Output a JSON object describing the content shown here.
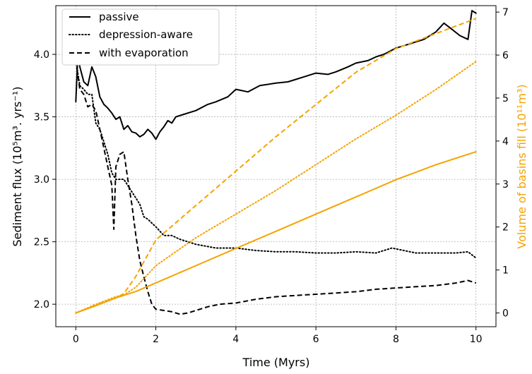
{
  "chart_data": {
    "type": "line",
    "title": "",
    "xlabel": "Time (Myrs)",
    "ylabel_left": "Sediment flux (10⁵m³. yrs⁻¹)",
    "ylabel_right": "Volume of basins fill (10¹¹m³)",
    "xlim": [
      -0.5,
      10.5
    ],
    "ylim_left": [
      1.82,
      4.39
    ],
    "ylim_right": [
      -0.32,
      7.15
    ],
    "xticks": [
      "0",
      "2",
      "4",
      "6",
      "8",
      "10"
    ],
    "yticks_left": [
      "2.0",
      "2.5",
      "3.0",
      "3.5",
      "4.0"
    ],
    "yticks_right": [
      "0",
      "1",
      "2",
      "3",
      "4",
      "5",
      "6",
      "7"
    ],
    "grid": true,
    "legend_position": "top-left",
    "colors": {
      "flux": "#000000",
      "volume": "#f5a300"
    },
    "series": [
      {
        "name": "passive",
        "axis": "left",
        "style": "solid",
        "x": [
          0.0,
          0.05,
          0.1,
          0.2,
          0.3,
          0.4,
          0.5,
          0.6,
          0.7,
          0.8,
          0.9,
          1.0,
          1.1,
          1.2,
          1.3,
          1.4,
          1.5,
          1.6,
          1.7,
          1.8,
          1.9,
          2.0,
          2.1,
          2.2,
          2.3,
          2.4,
          2.5,
          2.7,
          3.0,
          3.3,
          3.5,
          3.8,
          4.0,
          4.3,
          4.6,
          5.0,
          5.3,
          5.5,
          5.7,
          6.0,
          6.3,
          6.5,
          6.8,
          7.0,
          7.3,
          7.5,
          7.7,
          8.0,
          8.3,
          8.5,
          8.7,
          9.0,
          9.2,
          9.4,
          9.6,
          9.8,
          9.9,
          10.0
        ],
        "y": [
          3.62,
          4.0,
          3.9,
          3.78,
          3.75,
          3.9,
          3.82,
          3.66,
          3.6,
          3.57,
          3.53,
          3.48,
          3.5,
          3.4,
          3.43,
          3.38,
          3.37,
          3.34,
          3.36,
          3.4,
          3.37,
          3.32,
          3.38,
          3.42,
          3.47,
          3.45,
          3.5,
          3.52,
          3.55,
          3.6,
          3.62,
          3.66,
          3.72,
          3.7,
          3.75,
          3.77,
          3.78,
          3.8,
          3.82,
          3.85,
          3.84,
          3.86,
          3.9,
          3.93,
          3.95,
          3.98,
          4.0,
          4.05,
          4.08,
          4.1,
          4.12,
          4.18,
          4.25,
          4.2,
          4.15,
          4.12,
          4.35,
          4.33
        ]
      },
      {
        "name": "depression-aware",
        "axis": "left",
        "style": "dotted",
        "x": [
          0.0,
          0.1,
          0.2,
          0.3,
          0.4,
          0.5,
          0.6,
          0.7,
          0.8,
          0.9,
          1.0,
          1.1,
          1.2,
          1.3,
          1.4,
          1.5,
          1.6,
          1.7,
          1.8,
          1.9,
          2.0,
          2.2,
          2.4,
          2.6,
          2.8,
          3.0,
          3.5,
          4.0,
          4.5,
          5.0,
          5.5,
          6.0,
          6.5,
          7.0,
          7.5,
          7.9,
          8.5,
          9.0,
          9.5,
          9.8,
          10.0
        ],
        "y": [
          3.95,
          3.75,
          3.72,
          3.68,
          3.68,
          3.45,
          3.4,
          3.3,
          3.2,
          3.05,
          3.0,
          3.0,
          3.0,
          2.95,
          2.9,
          2.85,
          2.8,
          2.7,
          2.68,
          2.65,
          2.62,
          2.55,
          2.55,
          2.52,
          2.5,
          2.48,
          2.45,
          2.45,
          2.43,
          2.42,
          2.42,
          2.41,
          2.41,
          2.42,
          2.41,
          2.45,
          2.41,
          2.41,
          2.41,
          2.42,
          2.37
        ]
      },
      {
        "name": "with evaporation",
        "axis": "left",
        "style": "dashed",
        "x": [
          0.0,
          0.1,
          0.2,
          0.3,
          0.4,
          0.5,
          0.6,
          0.7,
          0.8,
          0.9,
          0.95,
          1.0,
          1.1,
          1.2,
          1.3,
          1.4,
          1.5,
          1.6,
          1.7,
          1.8,
          1.9,
          2.0,
          2.2,
          2.4,
          2.6,
          2.8,
          3.0,
          3.3,
          3.6,
          4.0,
          4.5,
          5.0,
          5.5,
          6.0,
          6.5,
          7.0,
          7.5,
          8.0,
          8.5,
          9.0,
          9.5,
          9.8,
          10.0
        ],
        "y": [
          3.95,
          3.72,
          3.68,
          3.58,
          3.6,
          3.55,
          3.4,
          3.25,
          3.1,
          2.95,
          2.6,
          3.1,
          3.2,
          3.22,
          3.0,
          2.8,
          2.55,
          2.35,
          2.22,
          2.1,
          2.0,
          1.96,
          1.95,
          1.94,
          1.92,
          1.93,
          1.95,
          1.98,
          2.0,
          2.01,
          2.04,
          2.06,
          2.07,
          2.08,
          2.09,
          2.1,
          2.12,
          2.13,
          2.14,
          2.15,
          2.17,
          2.19,
          2.17
        ]
      },
      {
        "name": "",
        "axis": "right",
        "style": "solid",
        "x": [
          0.0,
          0.5,
          1.0,
          1.5,
          2.0,
          3.0,
          4.0,
          5.0,
          6.0,
          7.0,
          8.0,
          9.0,
          10.0
        ],
        "y": [
          0.0,
          0.17,
          0.35,
          0.5,
          0.7,
          1.1,
          1.5,
          1.9,
          2.3,
          2.7,
          3.1,
          3.45,
          3.75
        ]
      },
      {
        "name": "",
        "axis": "right",
        "style": "dotted",
        "x": [
          0.0,
          0.5,
          1.0,
          1.2,
          1.5,
          2.0,
          3.0,
          4.0,
          5.0,
          6.0,
          7.0,
          8.0,
          9.0,
          10.0
        ],
        "y": [
          0.0,
          0.2,
          0.38,
          0.42,
          0.6,
          1.1,
          1.75,
          2.3,
          2.85,
          3.45,
          4.05,
          4.6,
          5.2,
          5.85
        ]
      },
      {
        "name": "",
        "axis": "right",
        "style": "dashed",
        "x": [
          0.0,
          0.5,
          1.0,
          1.2,
          1.5,
          2.0,
          3.0,
          4.0,
          5.0,
          6.0,
          7.0,
          8.0,
          9.0,
          10.0
        ],
        "y": [
          0.0,
          0.18,
          0.35,
          0.45,
          0.85,
          1.7,
          2.5,
          3.3,
          4.1,
          4.85,
          5.6,
          6.15,
          6.5,
          6.85
        ]
      }
    ]
  }
}
